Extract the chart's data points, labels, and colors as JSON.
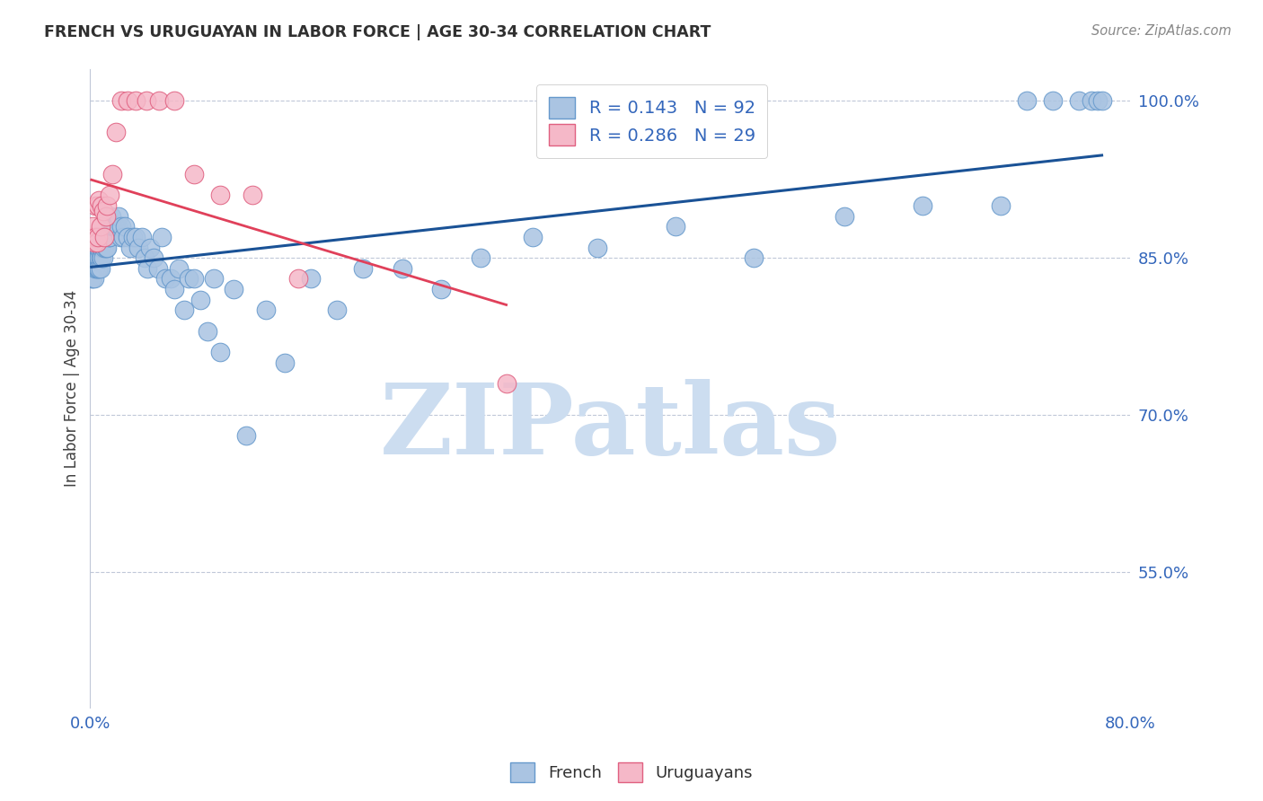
{
  "title": "FRENCH VS URUGUAYAN IN LABOR FORCE | AGE 30-34 CORRELATION CHART",
  "source": "Source: ZipAtlas.com",
  "ylabel": "In Labor Force | Age 30-34",
  "xlim": [
    0.0,
    0.8
  ],
  "ylim": [
    0.42,
    1.03
  ],
  "yticks": [
    0.55,
    0.7,
    0.85,
    1.0
  ],
  "ytick_labels": [
    "55.0%",
    "70.0%",
    "85.0%",
    "100.0%"
  ],
  "xticks": [
    0.0,
    0.1,
    0.2,
    0.3,
    0.4,
    0.5,
    0.6,
    0.7,
    0.8
  ],
  "xtick_labels": [
    "0.0%",
    "",
    "",
    "",
    "",
    "",
    "",
    "",
    "80.0%"
  ],
  "french_R": 0.143,
  "french_N": 92,
  "uruguayan_R": 0.286,
  "uruguayan_N": 29,
  "french_color": "#aac4e2",
  "french_edge_color": "#6699cc",
  "uruguayan_color": "#f5b8c8",
  "uruguayan_edge_color": "#e06080",
  "trend_french_color": "#1a5296",
  "trend_uruguayan_color": "#e0405a",
  "watermark": "ZIPatlas",
  "watermark_color": "#ccddf0",
  "french_x": [
    0.001,
    0.002,
    0.002,
    0.003,
    0.003,
    0.003,
    0.004,
    0.004,
    0.004,
    0.005,
    0.005,
    0.005,
    0.006,
    0.006,
    0.006,
    0.007,
    0.007,
    0.007,
    0.008,
    0.008,
    0.008,
    0.009,
    0.009,
    0.01,
    0.01,
    0.01,
    0.011,
    0.011,
    0.012,
    0.012,
    0.013,
    0.013,
    0.014,
    0.015,
    0.015,
    0.016,
    0.017,
    0.018,
    0.019,
    0.02,
    0.021,
    0.022,
    0.023,
    0.024,
    0.025,
    0.027,
    0.029,
    0.031,
    0.033,
    0.035,
    0.037,
    0.04,
    0.042,
    0.044,
    0.046,
    0.049,
    0.052,
    0.055,
    0.058,
    0.062,
    0.065,
    0.068,
    0.072,
    0.076,
    0.08,
    0.085,
    0.09,
    0.095,
    0.1,
    0.11,
    0.12,
    0.135,
    0.15,
    0.17,
    0.19,
    0.21,
    0.24,
    0.27,
    0.3,
    0.34,
    0.39,
    0.45,
    0.51,
    0.58,
    0.64,
    0.7,
    0.72,
    0.74,
    0.76,
    0.77,
    0.775,
    0.778
  ],
  "french_y": [
    0.83,
    0.84,
    0.83,
    0.85,
    0.83,
    0.86,
    0.84,
    0.86,
    0.85,
    0.85,
    0.84,
    0.86,
    0.85,
    0.86,
    0.84,
    0.85,
    0.86,
    0.84,
    0.85,
    0.84,
    0.86,
    0.85,
    0.86,
    0.86,
    0.87,
    0.85,
    0.87,
    0.86,
    0.87,
    0.86,
    0.87,
    0.86,
    0.87,
    0.88,
    0.87,
    0.89,
    0.88,
    0.88,
    0.88,
    0.88,
    0.88,
    0.89,
    0.87,
    0.88,
    0.87,
    0.88,
    0.87,
    0.86,
    0.87,
    0.87,
    0.86,
    0.87,
    0.85,
    0.84,
    0.86,
    0.85,
    0.84,
    0.87,
    0.83,
    0.83,
    0.82,
    0.84,
    0.8,
    0.83,
    0.83,
    0.81,
    0.78,
    0.83,
    0.76,
    0.82,
    0.68,
    0.8,
    0.75,
    0.83,
    0.8,
    0.84,
    0.84,
    0.82,
    0.85,
    0.87,
    0.86,
    0.88,
    0.85,
    0.89,
    0.9,
    0.9,
    1.0,
    1.0,
    1.0,
    1.0,
    1.0,
    1.0
  ],
  "uruguayan_x": [
    0.001,
    0.002,
    0.003,
    0.004,
    0.004,
    0.005,
    0.006,
    0.006,
    0.007,
    0.008,
    0.009,
    0.01,
    0.011,
    0.012,
    0.013,
    0.015,
    0.017,
    0.02,
    0.024,
    0.029,
    0.035,
    0.043,
    0.053,
    0.065,
    0.08,
    0.1,
    0.125,
    0.16,
    0.32
  ],
  "uruguayan_y": [
    0.87,
    0.88,
    0.865,
    0.87,
    0.9,
    0.865,
    0.9,
    0.87,
    0.905,
    0.88,
    0.9,
    0.895,
    0.87,
    0.89,
    0.9,
    0.91,
    0.93,
    0.97,
    1.0,
    1.0,
    1.0,
    1.0,
    1.0,
    1.0,
    0.93,
    0.91,
    0.91,
    0.83,
    0.73
  ]
}
